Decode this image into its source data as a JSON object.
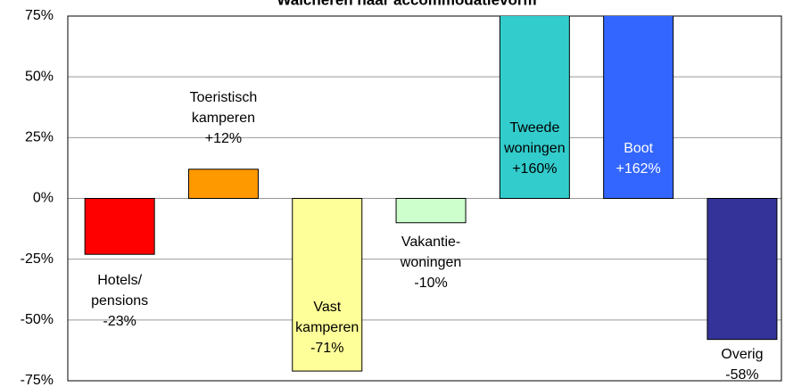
{
  "chart_data": {
    "type": "bar",
    "title": "Walcheren naar accommodatievorm",
    "categories": [
      [
        "Hotels/",
        "pensions"
      ],
      [
        "Toeristisch",
        "kamperen"
      ],
      [
        "Vast",
        "kamperen"
      ],
      [
        "Vakantie-",
        "woningen"
      ],
      [
        "Tweede",
        "woningen"
      ],
      [
        "Boot"
      ],
      [
        "Overig"
      ]
    ],
    "values": [
      -23,
      12,
      -71,
      -10,
      160,
      162,
      -58
    ],
    "value_labels": [
      "-23%",
      "+12%",
      "-71%",
      "-10%",
      "+160%",
      "+162%",
      "-58%"
    ],
    "colors": [
      "#ff0000",
      "#ff9900",
      "#ffff99",
      "#ccffcc",
      "#33cccc",
      "#3366ff",
      "#333399"
    ],
    "ylim": [
      -75,
      75
    ],
    "yticks": [
      {
        "value": -75,
        "label": "-75%"
      },
      {
        "value": -50,
        "label": "-50%"
      },
      {
        "value": -25,
        "label": "-25%"
      },
      {
        "value": 0,
        "label": "0%"
      },
      {
        "value": 25,
        "label": "25%"
      },
      {
        "value": 50,
        "label": "50%"
      },
      {
        "value": 75,
        "label": "75%"
      }
    ],
    "grid": true
  }
}
